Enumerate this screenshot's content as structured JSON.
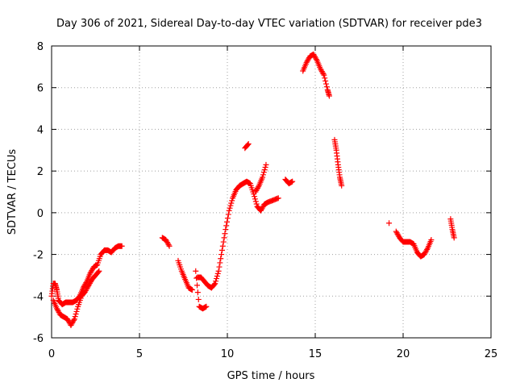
{
  "chart_data": {
    "type": "scatter",
    "title": "Day 306 of 2021, Sidereal Day-to-day VTEC variation (SDTVAR) for receiver pde3",
    "xlabel": "GPS time / hours",
    "ylabel": "SDTVAR / TECUs",
    "xlim": [
      0,
      25
    ],
    "ylim": [
      -6,
      8
    ],
    "xticks": [
      0,
      5,
      10,
      15,
      20,
      25
    ],
    "yticks": [
      -6,
      -4,
      -2,
      0,
      2,
      4,
      6,
      8
    ],
    "xtick_labels": [
      "0",
      "5",
      "10",
      "15",
      "20",
      "25"
    ],
    "ytick_labels": [
      "-6",
      "-4",
      "-2",
      "0",
      "2",
      "4",
      "6",
      "8"
    ],
    "grid": true,
    "marker": "+",
    "series": [
      {
        "name": "SDTVAR",
        "color": "#ff0000",
        "segments": [
          {
            "x": [
              0.0,
              0.1,
              0.2,
              0.3,
              0.4,
              0.6,
              0.8,
              1.0,
              1.2,
              1.4,
              1.6,
              1.8,
              2.0,
              2.2,
              2.4,
              2.6,
              2.8,
              3.0,
              3.2,
              3.4,
              3.6,
              3.8,
              4.0
            ],
            "y": [
              -4.0,
              -3.4,
              -3.4,
              -3.7,
              -4.2,
              -4.4,
              -4.3,
              -4.3,
              -4.3,
              -4.2,
              -4.0,
              -3.6,
              -3.3,
              -2.9,
              -2.6,
              -2.5,
              -2.0,
              -1.8,
              -1.8,
              -1.9,
              -1.7,
              -1.6,
              -1.6
            ]
          },
          {
            "x": [
              0.1,
              0.3,
              0.5,
              0.7,
              0.9,
              1.1,
              1.3,
              1.5,
              1.7,
              1.9,
              2.1,
              2.3,
              2.5,
              2.7
            ],
            "y": [
              -4.2,
              -4.6,
              -4.9,
              -5.0,
              -5.1,
              -5.4,
              -5.1,
              -4.5,
              -4.0,
              -3.8,
              -3.5,
              -3.2,
              -3.0,
              -2.8
            ]
          },
          {
            "x": [
              6.3,
              6.5,
              6.7
            ],
            "y": [
              -1.2,
              -1.3,
              -1.6
            ]
          },
          {
            "x": [
              7.2,
              7.4,
              7.6,
              7.8,
              8.0
            ],
            "y": [
              -2.3,
              -2.8,
              -3.2,
              -3.6,
              -3.7
            ]
          },
          {
            "x": [
              8.3,
              8.5,
              8.7,
              8.9,
              9.1,
              9.3,
              9.5,
              9.7,
              9.9,
              10.1,
              10.3,
              10.5,
              10.7,
              10.9,
              11.1,
              11.3,
              11.5,
              11.7,
              11.9,
              12.1,
              12.3,
              12.6,
              12.9
            ],
            "y": [
              -3.1,
              -3.1,
              -3.3,
              -3.5,
              -3.6,
              -3.4,
              -2.8,
              -1.8,
              -0.8,
              0.1,
              0.7,
              1.1,
              1.3,
              1.4,
              1.5,
              1.4,
              0.9,
              0.3,
              0.1,
              0.4,
              0.5,
              0.6,
              0.7
            ]
          },
          {
            "x": [
              8.2,
              8.4,
              8.6,
              8.8
            ],
            "y": [
              -2.8,
              -4.5,
              -4.6,
              -4.5
            ]
          },
          {
            "x": [
              11.0,
              11.2
            ],
            "y": [
              3.1,
              3.3
            ]
          },
          {
            "x": [
              11.6,
              11.8,
              12.0,
              12.2
            ],
            "y": [
              1.0,
              1.3,
              1.7,
              2.3
            ]
          },
          {
            "x": [
              13.3,
              13.5,
              13.7
            ],
            "y": [
              1.6,
              1.4,
              1.5
            ]
          },
          {
            "x": [
              14.3,
              14.5,
              14.7,
              14.9,
              15.1,
              15.3,
              15.5,
              15.7,
              15.8
            ],
            "y": [
              6.8,
              7.2,
              7.5,
              7.6,
              7.3,
              6.9,
              6.6,
              5.9,
              5.6
            ]
          },
          {
            "x": [
              16.1,
              16.2,
              16.3,
              16.4,
              16.5
            ],
            "y": [
              3.5,
              3.0,
              2.3,
              1.7,
              1.3
            ]
          },
          {
            "x": [
              19.2
            ],
            "y": [
              -0.5
            ]
          },
          {
            "x": [
              19.6,
              19.8,
              20.0,
              20.2,
              20.4,
              20.6,
              20.8,
              21.0,
              21.2,
              21.4,
              21.6
            ],
            "y": [
              -0.9,
              -1.2,
              -1.4,
              -1.4,
              -1.4,
              -1.5,
              -1.9,
              -2.1,
              -2.0,
              -1.7,
              -1.3
            ]
          },
          {
            "x": [
              22.7,
              22.8,
              22.9
            ],
            "y": [
              -0.3,
              -0.8,
              -1.2
            ]
          }
        ]
      }
    ]
  }
}
